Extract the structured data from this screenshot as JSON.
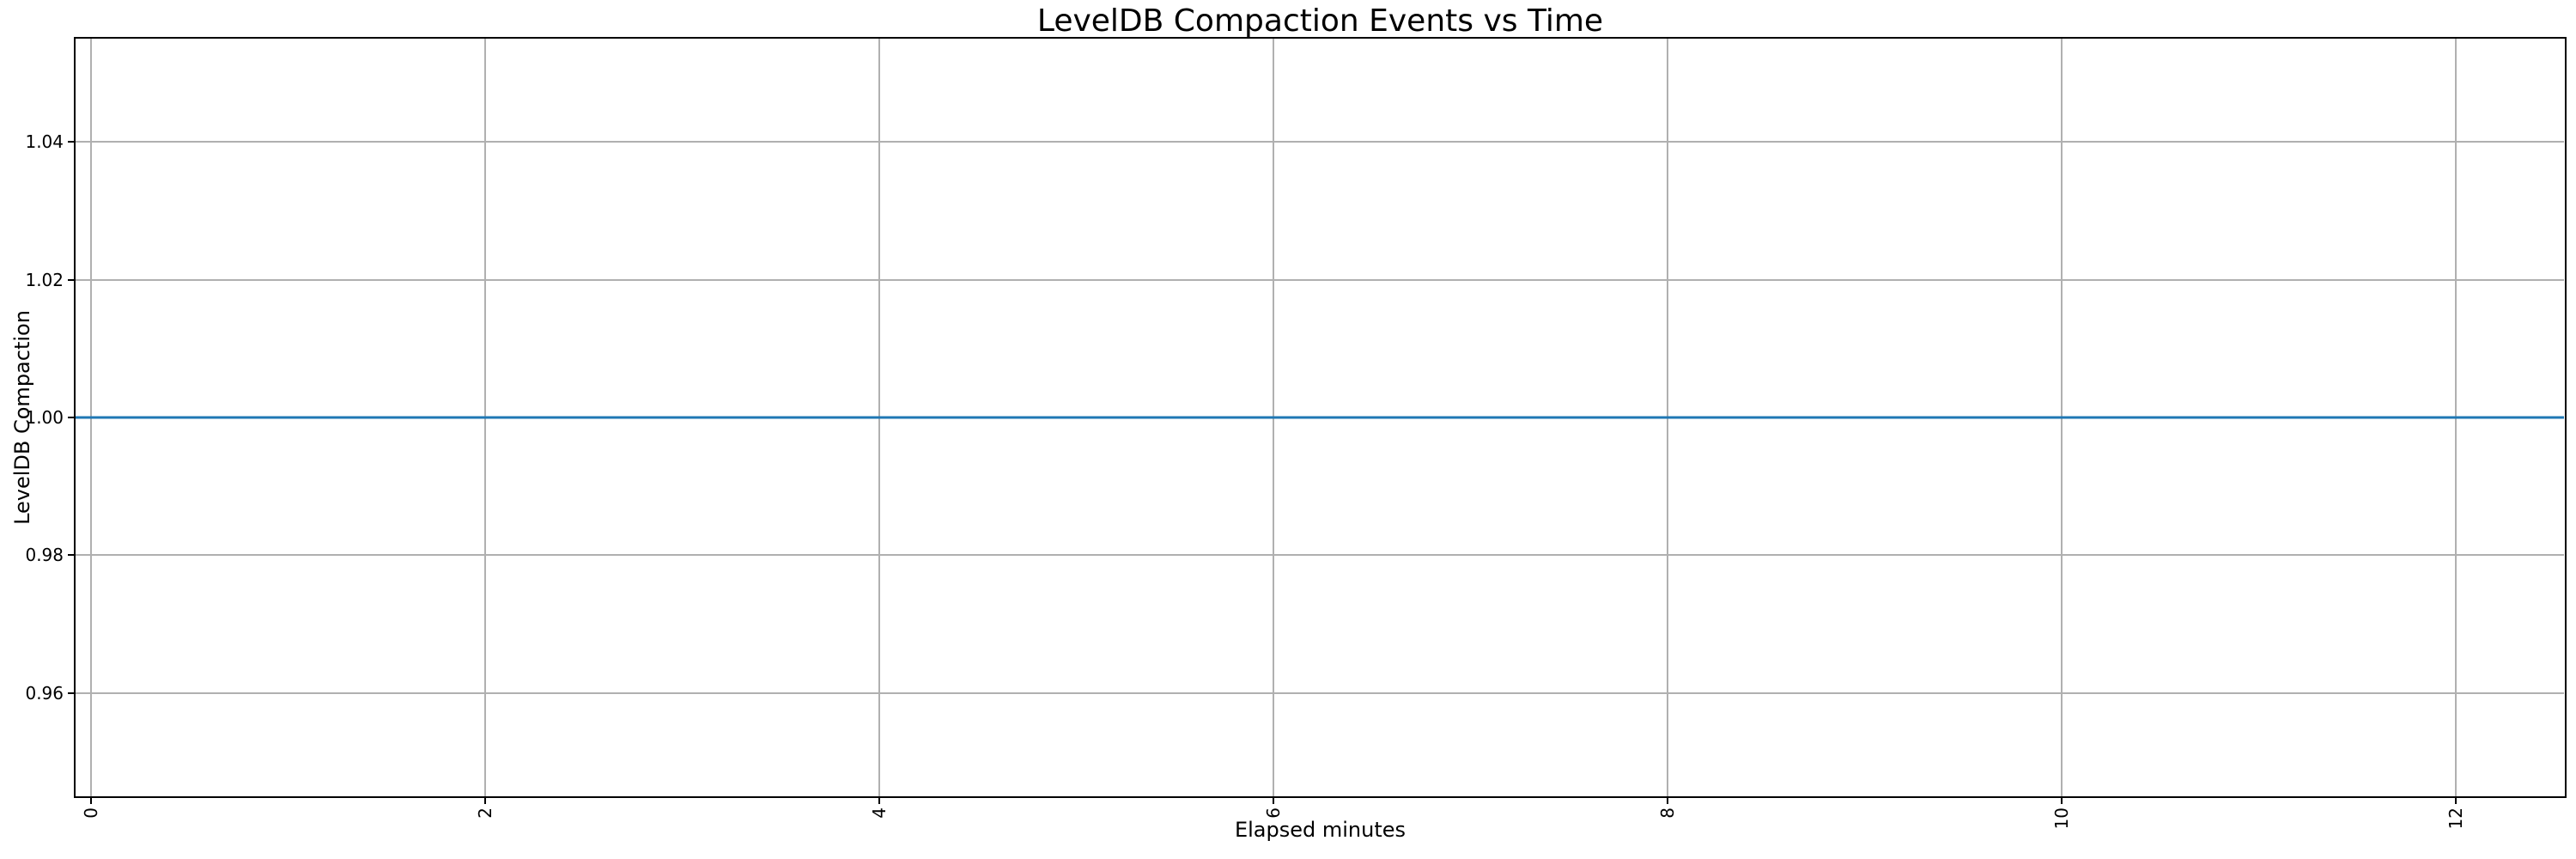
{
  "chart_data": {
    "type": "line",
    "title": "LevelDB Compaction Events vs Time",
    "xlabel": "Elapsed minutes",
    "ylabel": "LevelDB Compaction",
    "xlim": [
      -0.08,
      12.55
    ],
    "ylim": [
      0.945,
      1.055
    ],
    "x_ticks": [
      0,
      2,
      4,
      6,
      8,
      10,
      12
    ],
    "x_tick_labels": [
      "0",
      "2",
      "4",
      "6",
      "8",
      "10",
      "12"
    ],
    "x_tick_rotation": 90,
    "y_ticks": [
      0.96,
      0.98,
      1.0,
      1.02,
      1.04
    ],
    "y_tick_labels": [
      "0.96",
      "0.98",
      "1.00",
      "1.02",
      "1.04"
    ],
    "grid": true,
    "legend": null,
    "series": [
      {
        "name": "LevelDB Compaction",
        "color": "#1f77b4",
        "x": [
          0,
          12.5
        ],
        "y": [
          1.0,
          1.0
        ],
        "constant_value": 1.0,
        "spans_full_width": true
      }
    ],
    "colors": {
      "grid": "#b0b0b0",
      "spine": "#000000",
      "text": "#000000",
      "background": "#ffffff"
    }
  }
}
